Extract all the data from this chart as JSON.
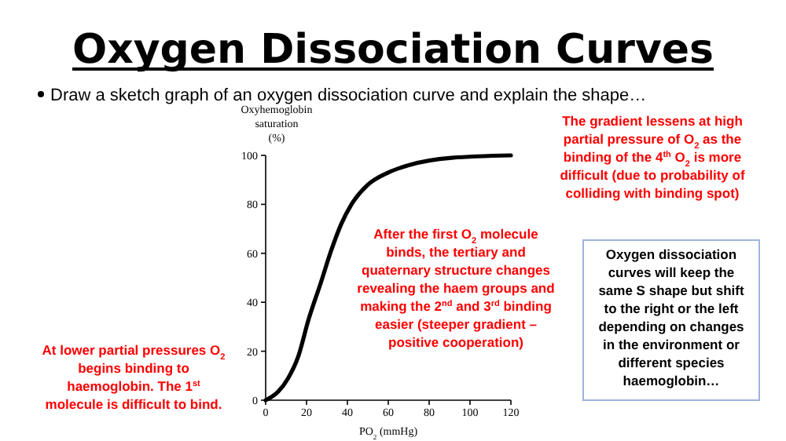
{
  "chart_data": {
    "type": "line",
    "title": "Oxygen Dissociation Curves",
    "subtitle": "Draw a sketch graph of an oxygen dissociation curve and explain the shape…",
    "xlabel": "PO$_{2}$ (mmHg)",
    "ylabel": "Oxyhemoglobin saturation (%)",
    "x": [
      0,
      6,
      11,
      16,
      21,
      27,
      32,
      37,
      42,
      50,
      60,
      70,
      91,
      120
    ],
    "series": [
      {
        "color": "#000000",
        "values": [
          0,
          3.4,
          9,
          18,
          33,
          48,
          61,
          72,
          80,
          88,
          93,
          96,
          99,
          100
        ]
      }
    ],
    "xlim": [
      0,
      120
    ],
    "ylim": [
      0,
      100
    ],
    "xticks": [
      0,
      20,
      40,
      60,
      80,
      100,
      120
    ],
    "yticks": [
      0,
      20,
      40,
      60,
      80,
      100
    ],
    "grid": false,
    "marker": "none",
    "line_style": "solid",
    "annotations": [
      "The gradient lessens at high partial pressure of O$_{2}$ as the binding of the 4$^{th}$ O$_{2}$ is more difficult (due to probability of colliding with binding spot)",
      "After the first O$_{2}$ molecule binds, the tertiary and quaternary structure changes revealing the haem groups and making the 2$^{nd}$ and 3$^{rd}$ binding easier (steeper gradient – positive cooperation)",
      "At lower partial pressures O$_{2}$ begins binding to haemoglobin. The 1$^{st}$ molecule is difficult to bind.",
      "Oxygen dissociation curves will keep the same S shape but shift to the right or the left depending on changes in the environment or different species haemoglobin…"
    ]
  }
}
